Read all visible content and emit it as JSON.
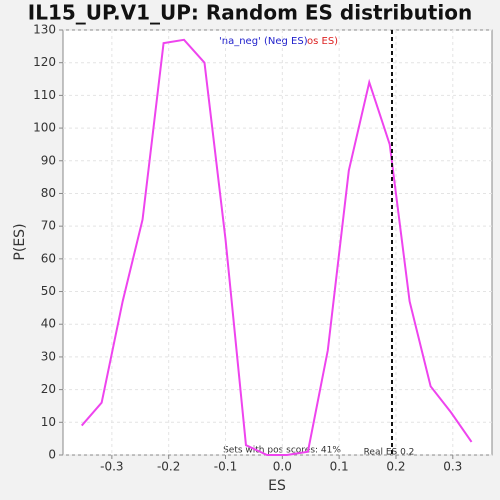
{
  "chart_data": {
    "type": "line",
    "title": "IL15_UP.V1_UP: Random ES distribution",
    "x_label": "ES",
    "y_label": "P(ES)",
    "legend_neg": "'na_neg' (Neg ES)",
    "legend_pos": "os ES)",
    "annotation": "Sets with pos scores: 41%",
    "real_es": {
      "value": 0.193,
      "label": "Real ES 0.2"
    },
    "grid": true,
    "x": [
      -0.353,
      -0.318,
      -0.281,
      -0.246,
      -0.209,
      -0.173,
      -0.137,
      -0.1,
      -0.064,
      -0.027,
      0.008,
      0.045,
      0.08,
      0.117,
      0.153,
      0.189,
      0.224,
      0.261,
      0.297,
      0.333
    ],
    "series": [
      {
        "name": "P(ES)",
        "color": "#ee44ee",
        "values": [
          9,
          16,
          47,
          72,
          126,
          127,
          120,
          66,
          3,
          0,
          0,
          1,
          32,
          87,
          114,
          95,
          47,
          21,
          13,
          4
        ]
      }
    ],
    "xlim": [
      -0.386,
      0.369
    ],
    "ylim": [
      0,
      130
    ],
    "xticks": [
      -0.3,
      -0.2,
      -0.1,
      {
        "value": 0,
        "label": "0.0"
      },
      0.1,
      0.2,
      0.3
    ],
    "yticks": [
      0,
      10,
      20,
      30,
      40,
      50,
      60,
      70,
      80,
      90,
      100,
      110,
      120,
      130
    ]
  }
}
